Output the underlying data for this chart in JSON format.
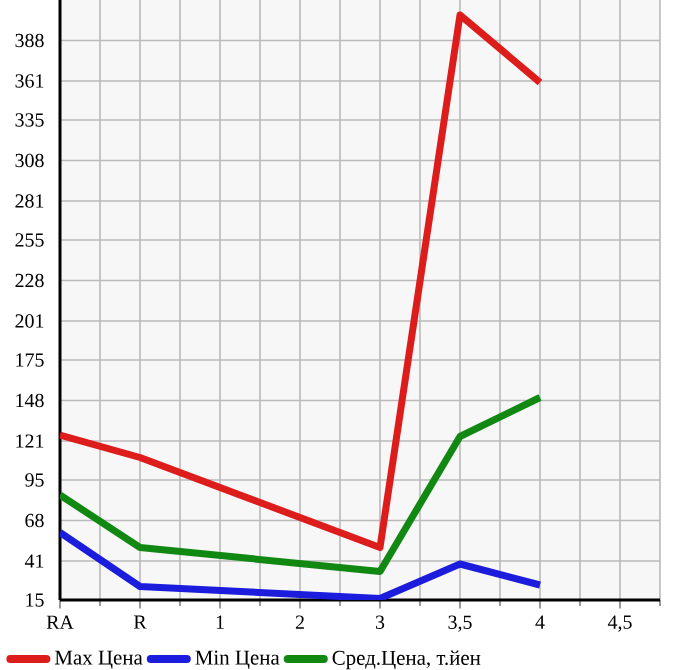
{
  "chart_data": {
    "type": "line",
    "categories": [
      "RA",
      "R",
      "1",
      "2",
      "3",
      "3,5",
      "4",
      "4,5"
    ],
    "series": [
      {
        "name": "Max Цена",
        "color": "#dd1c1c",
        "values": [
          125,
          110,
          null,
          null,
          50,
          405,
          360,
          null
        ]
      },
      {
        "name": "Min Цена",
        "color": "#1c1cdd",
        "values": [
          60,
          24,
          null,
          null,
          16,
          39,
          25,
          null
        ]
      },
      {
        "name": "Сред.Цена, т.йен",
        "color": "#118811",
        "values": [
          85,
          50,
          null,
          null,
          34,
          124,
          150,
          null
        ]
      }
    ],
    "ylim": [
      15,
      415
    ],
    "yticks": [
      15,
      41,
      68,
      95,
      121,
      148,
      175,
      201,
      228,
      255,
      281,
      308,
      335,
      361,
      388
    ],
    "grid": true,
    "legend": "bottom",
    "marker": "none",
    "line_style": "solid"
  }
}
